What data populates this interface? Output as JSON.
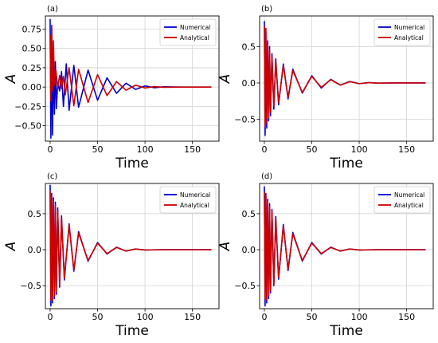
{
  "chart_data": [
    {
      "panel_label": "(a)",
      "type": "line",
      "xlabel": "Time",
      "ylabel": "A",
      "xlim": [
        -5,
        178
      ],
      "ylim": [
        -0.7,
        0.92
      ],
      "xticks": [
        0,
        50,
        100,
        150
      ],
      "yticks": [
        -0.5,
        -0.25,
        0.0,
        0.25,
        0.5,
        0.75
      ],
      "ytick_labels": [
        "−0.50",
        "−0.25",
        "0.00",
        "0.25",
        "0.50",
        "0.75"
      ],
      "grid": true,
      "legend": "top-right",
      "series": [
        {
          "name": "Numerical",
          "color": "#0000cc",
          "points": [
            [
              0,
              0.88
            ],
            [
              0.8,
              -0.66
            ],
            [
              1.6,
              0.78
            ],
            [
              2.5,
              -0.62
            ],
            [
              3.5,
              0.35
            ],
            [
              4.5,
              -0.35
            ],
            [
              5.5,
              0.33
            ],
            [
              6.5,
              -0.28
            ],
            [
              8,
              0.05
            ],
            [
              10,
              -0.05
            ],
            [
              12,
              0.2
            ],
            [
              14,
              -0.25
            ],
            [
              17,
              0.3
            ],
            [
              20,
              -0.3
            ],
            [
              25,
              0.28
            ],
            [
              30,
              -0.26
            ],
            [
              40,
              0.22
            ],
            [
              50,
              -0.17
            ],
            [
              60,
              0.12
            ],
            [
              70,
              -0.08
            ],
            [
              80,
              0.05
            ],
            [
              90,
              -0.03
            ],
            [
              100,
              0.015
            ],
            [
              110,
              -0.008
            ],
            [
              120,
              0.004
            ],
            [
              140,
              0.0
            ],
            [
              170,
              0.0
            ]
          ]
        },
        {
          "name": "Analytical",
          "color": "#cc0000",
          "points": [
            [
              0,
              0.68
            ],
            [
              0.8,
              -0.18
            ],
            [
              1.6,
              0.8
            ],
            [
              2.5,
              -0.05
            ],
            [
              3.5,
              0.6
            ],
            [
              4.5,
              0.02
            ],
            [
              6,
              0.22
            ],
            [
              8,
              0.0
            ],
            [
              10,
              0.15
            ],
            [
              12,
              -0.02
            ],
            [
              14,
              0.14
            ],
            [
              16,
              -0.1
            ],
            [
              20,
              0.25
            ],
            [
              25,
              -0.24
            ],
            [
              30,
              0.23
            ],
            [
              40,
              -0.2
            ],
            [
              50,
              0.16
            ],
            [
              60,
              -0.11
            ],
            [
              70,
              0.07
            ],
            [
              80,
              -0.04
            ],
            [
              90,
              0.025
            ],
            [
              100,
              -0.012
            ],
            [
              110,
              0.006
            ],
            [
              120,
              -0.003
            ],
            [
              140,
              0.0
            ],
            [
              170,
              0.0
            ]
          ]
        }
      ]
    },
    {
      "panel_label": "(b)",
      "type": "line",
      "xlabel": "Time",
      "ylabel": "A",
      "xlim": [
        -5,
        178
      ],
      "ylim": [
        -0.8,
        0.92
      ],
      "xticks": [
        0,
        50,
        100,
        150
      ],
      "yticks": [
        -0.5,
        0.0,
        0.5
      ],
      "ytick_labels": [
        "−0.5",
        "0.0",
        "0.5"
      ],
      "grid": true,
      "legend": "top-right",
      "series": [
        {
          "name": "Numerical",
          "color": "#0000cc",
          "points": [
            [
              0,
              0.85
            ],
            [
              0.8,
              -0.72
            ],
            [
              1.6,
              0.7
            ],
            [
              2.5,
              -0.62
            ],
            [
              3.5,
              0.58
            ],
            [
              4.5,
              -0.52
            ],
            [
              5.5,
              0.5
            ],
            [
              6.5,
              -0.45
            ],
            [
              8,
              0.4
            ],
            [
              10,
              -0.36
            ],
            [
              12,
              0.33
            ],
            [
              15,
              -0.3
            ],
            [
              20,
              0.26
            ],
            [
              25,
              -0.22
            ],
            [
              30,
              0.19
            ],
            [
              40,
              -0.14
            ],
            [
              50,
              0.1
            ],
            [
              60,
              -0.07
            ],
            [
              70,
              0.05
            ],
            [
              80,
              -0.03
            ],
            [
              90,
              0.02
            ],
            [
              100,
              -0.01
            ],
            [
              110,
              0.005
            ],
            [
              120,
              -0.002
            ],
            [
              140,
              0.0
            ],
            [
              170,
              0.0
            ]
          ]
        },
        {
          "name": "Analytical",
          "color": "#cc0000",
          "points": [
            [
              0,
              0.78
            ],
            [
              0.8,
              -0.6
            ],
            [
              1.6,
              0.75
            ],
            [
              2.5,
              -0.55
            ],
            [
              3.5,
              0.52
            ],
            [
              4.5,
              -0.48
            ],
            [
              5.5,
              0.45
            ],
            [
              6.5,
              -0.4
            ],
            [
              8,
              0.36
            ],
            [
              10,
              -0.32
            ],
            [
              12,
              0.3
            ],
            [
              15,
              -0.27
            ],
            [
              20,
              0.24
            ],
            [
              25,
              -0.2
            ],
            [
              30,
              0.17
            ],
            [
              40,
              -0.13
            ],
            [
              50,
              0.09
            ],
            [
              60,
              -0.06
            ],
            [
              70,
              0.045
            ],
            [
              80,
              -0.03
            ],
            [
              90,
              0.018
            ],
            [
              100,
              -0.01
            ],
            [
              110,
              0.005
            ],
            [
              120,
              -0.002
            ],
            [
              140,
              0.0
            ],
            [
              170,
              0.0
            ]
          ]
        }
      ]
    },
    {
      "panel_label": "(c)",
      "type": "line",
      "xlabel": "Time",
      "ylabel": "A",
      "xlim": [
        -5,
        178
      ],
      "ylim": [
        -0.82,
        0.92
      ],
      "xticks": [
        0,
        50,
        100,
        150
      ],
      "yticks": [
        -0.5,
        0.0,
        0.5
      ],
      "ytick_labels": [
        "−0.5",
        "0.0",
        "0.5"
      ],
      "grid": true,
      "legend": "top-right",
      "series": [
        {
          "name": "Numerical",
          "color": "#0000cc",
          "points": [
            [
              0,
              0.9
            ],
            [
              0.8,
              -0.78
            ],
            [
              1.6,
              0.78
            ],
            [
              2.5,
              -0.74
            ],
            [
              3.5,
              0.72
            ],
            [
              4.5,
              -0.68
            ],
            [
              5.5,
              0.66
            ],
            [
              6.5,
              -0.62
            ],
            [
              8,
              0.58
            ],
            [
              10,
              -0.52
            ],
            [
              12,
              0.47
            ],
            [
              15,
              -0.42
            ],
            [
              20,
              0.36
            ],
            [
              25,
              -0.3
            ],
            [
              30,
              0.25
            ],
            [
              40,
              -0.16
            ],
            [
              50,
              0.1
            ],
            [
              60,
              -0.06
            ],
            [
              70,
              0.035
            ],
            [
              80,
              -0.02
            ],
            [
              90,
              0.01
            ],
            [
              100,
              -0.005
            ],
            [
              120,
              0.0
            ],
            [
              170,
              0.0
            ]
          ]
        },
        {
          "name": "Analytical",
          "color": "#cc0000",
          "points": [
            [
              0,
              0.82
            ],
            [
              0.8,
              -0.7
            ],
            [
              1.6,
              0.74
            ],
            [
              2.5,
              -0.7
            ],
            [
              3.5,
              0.68
            ],
            [
              4.5,
              -0.64
            ],
            [
              5.5,
              0.62
            ],
            [
              6.5,
              -0.58
            ],
            [
              8,
              0.54
            ],
            [
              10,
              -0.49
            ],
            [
              12,
              0.44
            ],
            [
              15,
              -0.4
            ],
            [
              20,
              0.34
            ],
            [
              25,
              -0.28
            ],
            [
              30,
              0.23
            ],
            [
              40,
              -0.15
            ],
            [
              50,
              0.09
            ],
            [
              60,
              -0.055
            ],
            [
              70,
              0.03
            ],
            [
              80,
              -0.018
            ],
            [
              90,
              0.009
            ],
            [
              100,
              -0.004
            ],
            [
              120,
              0.0
            ],
            [
              170,
              0.0
            ]
          ]
        }
      ]
    },
    {
      "panel_label": "(d)",
      "type": "line",
      "xlabel": "Time",
      "ylabel": "A",
      "xlim": [
        -5,
        178
      ],
      "ylim": [
        -0.82,
        0.92
      ],
      "xticks": [
        0,
        50,
        100,
        150
      ],
      "yticks": [
        -0.5,
        0.0,
        0.5
      ],
      "ytick_labels": [
        "−0.5",
        "0.0",
        "0.5"
      ],
      "grid": true,
      "legend": "top-right",
      "series": [
        {
          "name": "Numerical",
          "color": "#0000cc",
          "points": [
            [
              0,
              0.88
            ],
            [
              0.8,
              -0.78
            ],
            [
              1.6,
              0.78
            ],
            [
              2.5,
              -0.74
            ],
            [
              3.5,
              0.7
            ],
            [
              4.5,
              -0.68
            ],
            [
              5.5,
              0.64
            ],
            [
              6.5,
              -0.6
            ],
            [
              8,
              0.56
            ],
            [
              10,
              -0.5
            ],
            [
              12,
              0.46
            ],
            [
              15,
              -0.41
            ],
            [
              20,
              0.35
            ],
            [
              25,
              -0.29
            ],
            [
              30,
              0.24
            ],
            [
              40,
              -0.16
            ],
            [
              50,
              0.1
            ],
            [
              60,
              -0.06
            ],
            [
              70,
              0.035
            ],
            [
              80,
              -0.02
            ],
            [
              90,
              0.01
            ],
            [
              100,
              -0.005
            ],
            [
              120,
              0.0
            ],
            [
              170,
              0.0
            ]
          ]
        },
        {
          "name": "Analytical",
          "color": "#cc0000",
          "points": [
            [
              0,
              0.8
            ],
            [
              0.8,
              -0.68
            ],
            [
              1.6,
              0.74
            ],
            [
              2.5,
              -0.7
            ],
            [
              3.5,
              0.66
            ],
            [
              4.5,
              -0.64
            ],
            [
              5.5,
              0.6
            ],
            [
              6.5,
              -0.57
            ],
            [
              8,
              0.53
            ],
            [
              10,
              -0.48
            ],
            [
              12,
              0.43
            ],
            [
              15,
              -0.39
            ],
            [
              20,
              0.33
            ],
            [
              25,
              -0.27
            ],
            [
              30,
              0.22
            ],
            [
              40,
              -0.15
            ],
            [
              50,
              0.09
            ],
            [
              60,
              -0.055
            ],
            [
              70,
              0.03
            ],
            [
              80,
              -0.018
            ],
            [
              90,
              0.009
            ],
            [
              100,
              -0.004
            ],
            [
              120,
              0.0
            ],
            [
              170,
              0.0
            ]
          ]
        }
      ]
    }
  ]
}
